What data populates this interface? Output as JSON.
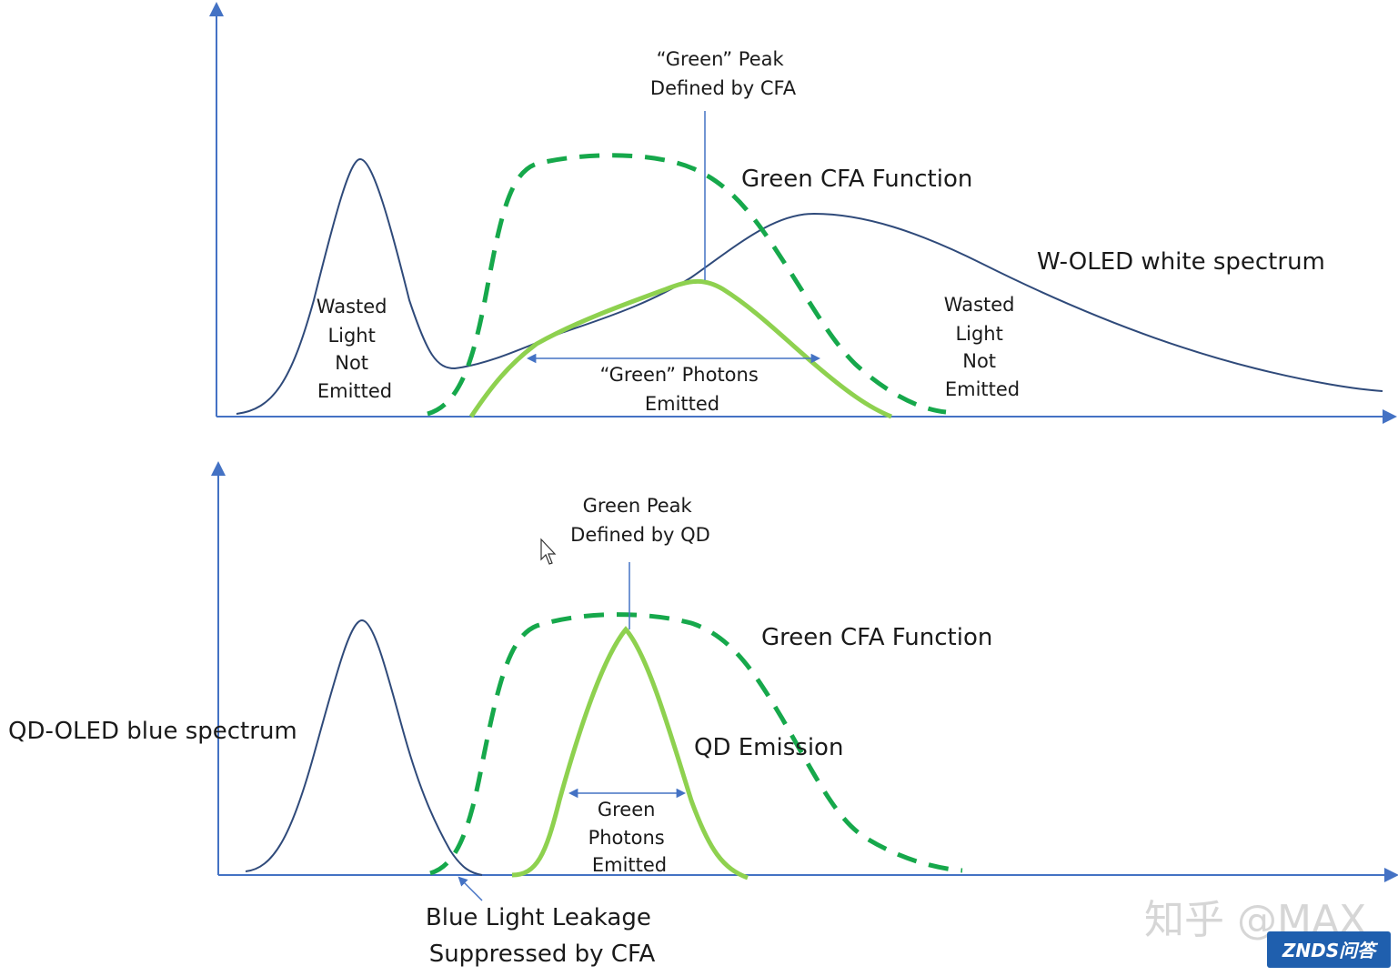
{
  "colors": {
    "axis": "#4472c4",
    "spectrum": "#2f4a7a",
    "cfa": "#16a84b",
    "emission": "#8ed14f",
    "badge": "#1f5fae",
    "watermark": "#d6d6d6"
  },
  "top_panel": {
    "peak_label": [
      "“Green” Peak",
      "Defined by CFA"
    ],
    "cfa_label": "Green CFA Function",
    "spectrum_label": "W-OLED white spectrum",
    "wasted_left": [
      "Wasted",
      "Light",
      "Not",
      "Emitted"
    ],
    "wasted_right": [
      "Wasted",
      "Light",
      "Not",
      "Emitted"
    ],
    "photons_label": [
      "“Green” Photons",
      "Emitted"
    ]
  },
  "bottom_panel": {
    "peak_label": [
      "Green Peak",
      "Defined by QD"
    ],
    "cfa_label": "Green CFA Function",
    "spectrum_label": "QD-OLED blue spectrum",
    "emission_label": "QD Emission",
    "photons_label": [
      "Green",
      "Photons",
      "Emitted"
    ],
    "leakage_label": [
      "Blue Light Leakage",
      "Suppressed by CFA"
    ]
  },
  "watermark": {
    "text": "知乎 @MAX",
    "badge": "ZNDS问答"
  }
}
